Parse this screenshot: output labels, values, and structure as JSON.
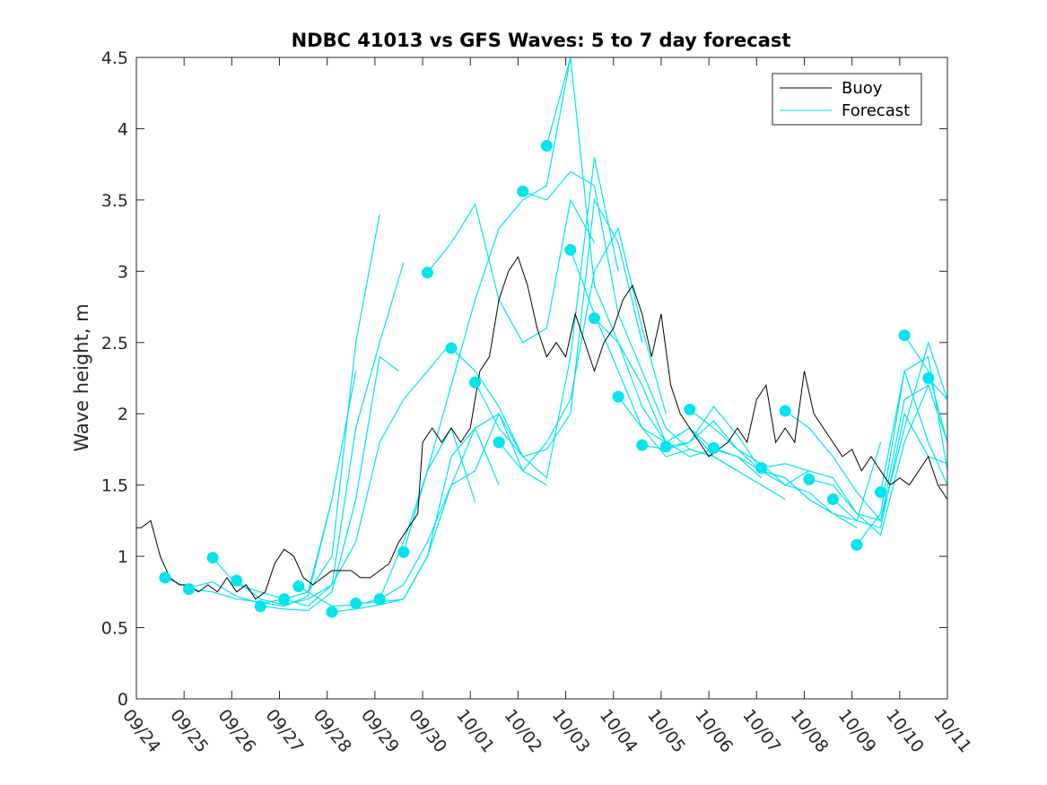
{
  "chart_data": {
    "type": "line",
    "title": "NDBC 41013 vs GFS Waves: 5 to 7 day forecast",
    "xlabel": "",
    "ylabel": "Wave height, m",
    "xlim": [
      0,
      17
    ],
    "ylim": [
      0,
      4.5
    ],
    "x_tick_labels": [
      "09/24",
      "09/25",
      "09/26",
      "09/27",
      "09/28",
      "09/29",
      "09/30",
      "10/01",
      "10/02",
      "10/03",
      "10/04",
      "10/05",
      "10/06",
      "10/07",
      "10/08",
      "10/09",
      "10/10",
      "10/11"
    ],
    "y_ticks": [
      0,
      0.5,
      1,
      1.5,
      2,
      2.5,
      3,
      3.5,
      4,
      4.5
    ],
    "y_tick_labels": [
      "0",
      "0.5",
      "1",
      "1.5",
      "2",
      "2.5",
      "3",
      "3.5",
      "4",
      "4.5"
    ],
    "legend": {
      "location": "top-right",
      "entries": [
        {
          "label": "Buoy",
          "color": "#000000"
        },
        {
          "label": "Forecast",
          "color": "#00e5ee"
        }
      ]
    },
    "colors": {
      "buoy": "#000000",
      "forecast": "#00e5ee",
      "axis": "#262626"
    },
    "buoy": {
      "name": "Buoy",
      "x": [
        0,
        0.1,
        0.3,
        0.5,
        0.7,
        0.9,
        1.1,
        1.3,
        1.5,
        1.7,
        1.9,
        2.1,
        2.3,
        2.5,
        2.7,
        2.9,
        3.1,
        3.3,
        3.5,
        3.7,
        3.9,
        4.1,
        4.3,
        4.5,
        4.7,
        4.9,
        5.1,
        5.3,
        5.5,
        5.7,
        5.9,
        6.0,
        6.2,
        6.4,
        6.6,
        6.8,
        7.0,
        7.2,
        7.4,
        7.6,
        7.8,
        8.0,
        8.2,
        8.4,
        8.6,
        8.8,
        9.0,
        9.2,
        9.4,
        9.6,
        9.8,
        10.0,
        10.2,
        10.4,
        10.6,
        10.8,
        11.0,
        11.2,
        11.4,
        11.6,
        11.8,
        12.0,
        12.2,
        12.4,
        12.6,
        12.8,
        13.0,
        13.2,
        13.4,
        13.6,
        13.8,
        14.0,
        14.2,
        14.4,
        14.6,
        14.8,
        15.0,
        15.2,
        15.4,
        15.6,
        15.8,
        16.0,
        16.2,
        16.4,
        16.6,
        16.8,
        17.0
      ],
      "values": [
        1.2,
        1.2,
        1.25,
        1.0,
        0.85,
        0.8,
        0.8,
        0.75,
        0.8,
        0.75,
        0.85,
        0.75,
        0.8,
        0.7,
        0.75,
        0.95,
        1.05,
        1.0,
        0.85,
        0.8,
        0.85,
        0.9,
        0.9,
        0.9,
        0.85,
        0.85,
        0.9,
        0.95,
        1.1,
        1.2,
        1.3,
        1.8,
        1.9,
        1.8,
        1.9,
        1.8,
        1.9,
        2.3,
        2.4,
        2.8,
        3.0,
        3.1,
        2.9,
        2.6,
        2.4,
        2.5,
        2.4,
        2.7,
        2.5,
        2.3,
        2.5,
        2.6,
        2.8,
        2.9,
        2.7,
        2.4,
        2.7,
        2.2,
        2.0,
        1.9,
        1.8,
        1.7,
        1.75,
        1.8,
        1.9,
        1.8,
        2.1,
        2.2,
        1.8,
        1.9,
        1.8,
        2.3,
        2.0,
        1.9,
        1.8,
        1.7,
        1.75,
        1.6,
        1.7,
        1.6,
        1.5,
        1.55,
        1.5,
        1.6,
        1.7,
        1.5,
        1.4
      ]
    },
    "forecast": {
      "name": "Forecast",
      "series": [
        {
          "x": [
            0.6,
            1.1,
            1.6,
            2.1,
            2.6,
            3.1,
            3.6,
            4.1
          ],
          "values": [
            0.85,
            0.78,
            0.82,
            0.72,
            0.67,
            0.7,
            0.75,
            1.4
          ]
        },
        {
          "x": [
            1.1,
            1.6,
            2.1,
            2.6,
            3.1,
            3.6,
            4.1,
            4.6
          ],
          "values": [
            0.77,
            0.75,
            0.7,
            0.68,
            0.65,
            0.72,
            1.4,
            2.3
          ]
        },
        {
          "x": [
            1.6,
            2.1,
            2.6,
            3.1,
            3.6,
            4.1,
            4.6,
            5.1
          ],
          "values": [
            0.99,
            0.8,
            0.75,
            0.7,
            0.75,
            1.0,
            2.5,
            3.4
          ]
        },
        {
          "x": [
            2.1,
            2.6,
            3.1,
            3.6,
            4.1,
            4.6,
            5.1,
            5.6
          ],
          "values": [
            0.83,
            0.7,
            0.66,
            0.7,
            0.8,
            1.9,
            2.5,
            3.06
          ]
        },
        {
          "x": [
            2.6,
            3.1,
            3.6,
            4.1,
            4.6,
            5.1,
            5.5
          ],
          "values": [
            0.65,
            0.63,
            0.62,
            0.75,
            1.4,
            2.4,
            2.3
          ]
        },
        {
          "x": [
            3.1,
            3.6,
            4.1,
            4.6,
            5.1,
            5.6,
            6.1,
            6.6
          ],
          "values": [
            0.7,
            0.65,
            0.8,
            1.1,
            1.8,
            2.1,
            2.3,
            2.5
          ]
        },
        {
          "x": [
            3.4,
            4.1,
            4.6,
            5.1,
            5.6,
            6.1,
            6.6,
            7.1
          ],
          "values": [
            0.79,
            0.65,
            0.66,
            0.7,
            1.1,
            1.6,
            1.9,
            1.38
          ]
        },
        {
          "x": [
            4.1,
            4.6,
            5.1,
            5.6,
            6.1,
            6.6,
            7.1,
            7.6
          ],
          "values": [
            0.61,
            0.63,
            0.66,
            0.7,
            1.0,
            1.7,
            1.9,
            1.5
          ]
        },
        {
          "x": [
            4.6,
            5.1,
            5.6,
            6.1,
            6.6,
            7.1,
            7.6,
            8.1
          ],
          "values": [
            0.67,
            0.68,
            0.7,
            1.0,
            1.5,
            1.9,
            2.0,
            1.7
          ]
        },
        {
          "x": [
            5.1,
            5.6,
            6.1,
            6.6,
            7.1,
            7.6,
            8.1,
            8.6
          ],
          "values": [
            0.7,
            0.8,
            1.1,
            1.5,
            1.6,
            2.0,
            1.6,
            1.5
          ]
        },
        {
          "x": [
            5.6,
            6.1,
            6.6,
            7.1,
            7.6,
            8.1,
            8.6,
            9.1
          ],
          "values": [
            1.03,
            1.6,
            2.2,
            2.8,
            3.3,
            3.5,
            3.6,
            4.5
          ]
        },
        {
          "x": [
            6.1,
            6.6,
            7.1,
            7.6,
            8.1,
            8.6,
            9.1,
            9.6
          ],
          "values": [
            2.99,
            3.2,
            3.47,
            2.8,
            2.5,
            2.6,
            3.5,
            3.2
          ]
        },
        {
          "x": [
            6.6,
            7.1,
            7.6,
            8.1,
            8.6,
            9.1,
            9.6,
            10.1
          ],
          "values": [
            2.46,
            2.3,
            2.05,
            1.7,
            1.55,
            2.4,
            3.8,
            3.0
          ]
        },
        {
          "x": [
            7.1,
            7.6,
            8.1,
            8.6,
            9.1,
            9.6,
            10.1,
            10.6
          ],
          "values": [
            2.22,
            1.9,
            1.7,
            1.75,
            2.0,
            3.5,
            3.2,
            2.5
          ]
        },
        {
          "x": [
            7.6,
            8.1,
            8.6,
            9.1,
            9.6,
            10.1,
            10.6,
            11.1
          ],
          "values": [
            1.8,
            1.6,
            1.8,
            2.1,
            3.0,
            3.3,
            2.6,
            2.0
          ]
        },
        {
          "x": [
            8.1,
            8.6,
            9.1,
            9.6,
            10.1,
            10.6,
            11.1,
            11.6
          ],
          "values": [
            3.56,
            3.5,
            3.7,
            3.6,
            2.7,
            2.3,
            1.9,
            1.75
          ]
        },
        {
          "x": [
            8.6,
            9.1,
            9.6,
            10.1,
            10.6,
            11.1,
            11.6,
            12.1
          ],
          "values": [
            3.88,
            4.5,
            2.9,
            2.5,
            2.2,
            1.8,
            1.9,
            1.75
          ]
        },
        {
          "x": [
            9.1,
            9.6,
            10.1,
            10.6,
            11.1,
            11.6,
            12.1,
            12.6
          ],
          "values": [
            3.15,
            2.7,
            2.3,
            1.9,
            1.7,
            1.75,
            1.7,
            1.6
          ]
        },
        {
          "x": [
            9.6,
            10.1,
            10.6,
            11.1,
            11.6,
            12.1,
            12.6,
            13.1
          ],
          "values": [
            2.67,
            2.5,
            2.05,
            1.8,
            1.7,
            1.75,
            1.7,
            1.55
          ]
        },
        {
          "x": [
            10.1,
            10.6,
            11.1,
            11.6,
            12.1,
            12.6,
            13.1,
            13.6
          ],
          "values": [
            2.12,
            1.9,
            1.8,
            1.9,
            1.7,
            1.6,
            1.5,
            1.4
          ]
        },
        {
          "x": [
            10.6,
            11.1,
            11.6,
            12.1,
            12.6,
            13.1,
            13.6,
            14.1
          ],
          "values": [
            1.78,
            1.75,
            1.8,
            1.95,
            1.75,
            1.65,
            1.5,
            1.6
          ]
        },
        {
          "x": [
            11.1,
            11.6,
            12.1,
            12.6,
            13.1,
            13.6,
            14.1,
            14.6
          ],
          "values": [
            1.77,
            1.8,
            2.05,
            1.85,
            1.6,
            1.55,
            1.4,
            1.3
          ]
        },
        {
          "x": [
            11.6,
            12.1,
            12.6,
            13.1,
            13.6,
            14.1,
            14.6,
            15.1
          ],
          "values": [
            2.03,
            1.9,
            1.75,
            1.6,
            1.55,
            1.4,
            1.3,
            1.2
          ]
        },
        {
          "x": [
            12.1,
            12.6,
            13.1,
            13.6,
            14.1,
            14.6,
            15.1,
            15.6
          ],
          "values": [
            1.76,
            1.7,
            1.6,
            1.5,
            1.45,
            1.3,
            1.25,
            1.8
          ]
        },
        {
          "x": [
            13.1,
            13.6,
            14.1,
            14.6,
            15.1,
            15.6,
            16.1,
            16.6
          ],
          "values": [
            1.62,
            1.65,
            1.6,
            1.55,
            1.3,
            1.25,
            2.1,
            2.2
          ]
        },
        {
          "x": [
            13.6,
            14.1,
            14.6,
            15.1,
            15.6,
            16.1,
            16.6,
            17.0
          ],
          "values": [
            2.02,
            1.9,
            1.7,
            1.45,
            1.25,
            1.9,
            2.5,
            2.1
          ]
        },
        {
          "x": [
            14.1,
            14.6,
            15.1,
            15.6,
            16.1,
            16.6,
            17.0
          ],
          "values": [
            1.54,
            1.5,
            1.3,
            1.15,
            1.8,
            2.2,
            1.8
          ]
        },
        {
          "x": [
            14.6,
            15.1,
            15.6,
            16.1,
            16.6,
            17.0
          ],
          "values": [
            1.4,
            1.25,
            1.2,
            2.0,
            1.7,
            1.65
          ]
        },
        {
          "x": [
            15.1,
            15.6,
            16.1,
            16.6,
            17.0
          ],
          "values": [
            1.08,
            1.3,
            2.3,
            1.8,
            1.5
          ]
        },
        {
          "x": [
            15.6,
            16.1,
            16.6,
            17.0
          ],
          "values": [
            1.45,
            2.3,
            2.4,
            1.6
          ]
        },
        {
          "x": [
            16.1,
            16.6,
            17.0
          ],
          "values": [
            2.55,
            2.3,
            1.8
          ]
        },
        {
          "x": [
            16.6,
            17.0
          ],
          "values": [
            2.25,
            2.1
          ]
        }
      ]
    }
  }
}
